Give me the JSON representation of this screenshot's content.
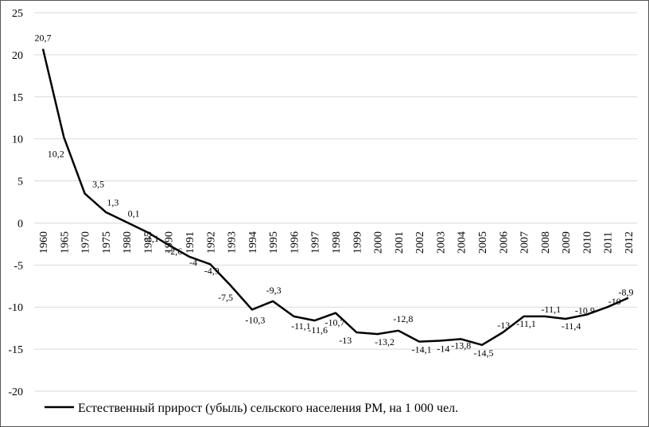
{
  "chart_data": {
    "type": "line",
    "title": "",
    "xlabel": "",
    "ylabel": "",
    "ylim": [
      -20,
      25
    ],
    "y_ticks": [
      25,
      20,
      15,
      10,
      5,
      0,
      -5,
      -10,
      -15,
      -20
    ],
    "grid": "horizontal",
    "legend_position": "bottom",
    "line_color": "#000000",
    "grid_color": "#d9d9d9",
    "categories": [
      "1960",
      "1965",
      "1970",
      "1975",
      "1980",
      "1985",
      "1990",
      "1991",
      "1992",
      "1993",
      "1994",
      "1995",
      "1996",
      "1997",
      "1998",
      "1999",
      "2000",
      "2001",
      "2002",
      "2003",
      "2004",
      "2005",
      "2006",
      "2007",
      "2008",
      "2009",
      "2010",
      "2011",
      "2012"
    ],
    "series": [
      {
        "name": "Естественный прирост (убыль) сельского населения РМ, на 1 000 чел.",
        "values": [
          20.7,
          10.2,
          3.5,
          1.3,
          0.1,
          -1.1,
          -2.6,
          -4,
          -4.9,
          -7.5,
          -10.3,
          -9.3,
          -11.1,
          -11.6,
          -10.7,
          -13,
          -13.2,
          -12.8,
          -14.1,
          -14,
          -13.8,
          -14.5,
          -13,
          -11.1,
          -11.1,
          -11.4,
          -10.9,
          -10,
          -8.9
        ],
        "labels": [
          "20,7",
          "10,2",
          "3,5",
          "1,3",
          "0,1",
          "-1,1",
          "-2,6",
          "-4",
          "-4,9",
          "-7,5",
          "-10,3",
          "-9,3",
          "-11,1",
          "-11,6",
          "-10,7",
          "-13",
          "-13,2",
          "-12,8",
          "-14,1",
          "-14",
          "-13,8",
          "-14,5",
          "-13",
          "-11,1",
          "-11,1",
          "-11,4",
          "-10,9",
          "-10",
          "-8,9"
        ]
      }
    ]
  }
}
